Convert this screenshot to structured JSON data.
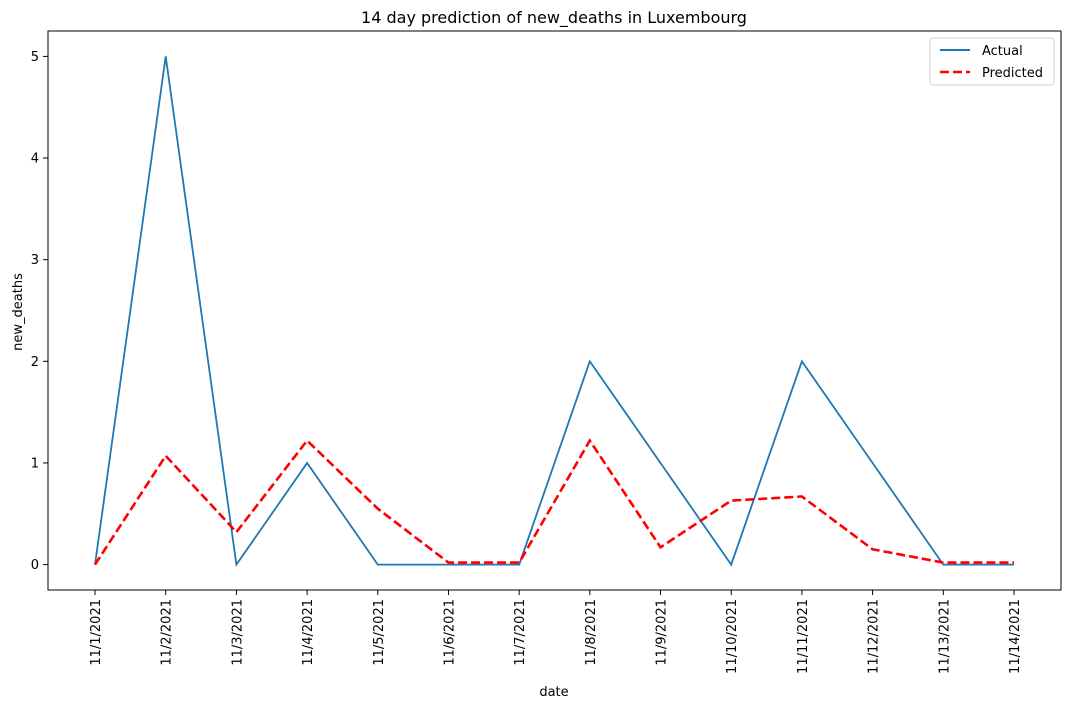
{
  "chart_data": {
    "type": "line",
    "title": "14 day prediction of new_deaths in Luxembourg",
    "xlabel": "date",
    "ylabel": "new_deaths",
    "categories": [
      "11/1/2021",
      "11/2/2021",
      "11/3/2021",
      "11/4/2021",
      "11/5/2021",
      "11/6/2021",
      "11/7/2021",
      "11/8/2021",
      "11/9/2021",
      "11/10/2021",
      "11/11/2021",
      "11/12/2021",
      "11/13/2021",
      "11/14/2021"
    ],
    "yticks": [
      "0",
      "1",
      "2",
      "3",
      "4",
      "5"
    ],
    "ylim": [
      -0.25,
      5.25
    ],
    "grid": false,
    "legend_position": "top-right",
    "series": [
      {
        "name": "Actual",
        "color": "#1f77b4",
        "style": "solid",
        "values": [
          0,
          5,
          0,
          1,
          0,
          0,
          0,
          2,
          1,
          0,
          2,
          1,
          0,
          0
        ]
      },
      {
        "name": "Predicted",
        "color": "#ff0000",
        "style": "dashed",
        "values": [
          0.0,
          1.07,
          0.32,
          1.22,
          0.55,
          0.02,
          0.02,
          1.22,
          0.17,
          0.63,
          0.67,
          0.15,
          0.02,
          0.02
        ]
      }
    ]
  }
}
